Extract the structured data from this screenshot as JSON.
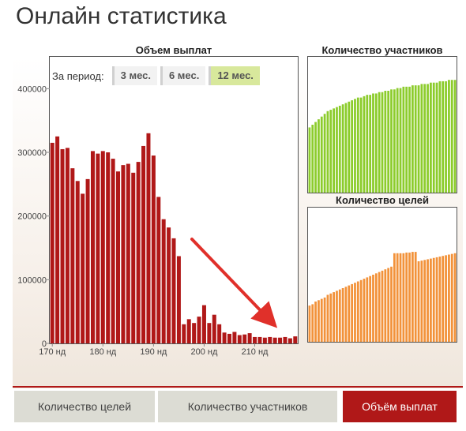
{
  "title": "Онлайн статистика",
  "period": {
    "label": "За период:",
    "options": [
      "3 мес.",
      "6 мес.",
      "12 мес."
    ],
    "active_index": 2
  },
  "tabs": [
    {
      "label": "Количество целей",
      "active": false
    },
    {
      "label": "Количество участников",
      "active": false
    },
    {
      "label": "Объём выплат",
      "active": true
    }
  ],
  "colors": {
    "payout_bar": "#b01818",
    "members_bar": "#8ccc2c",
    "goals_bar": "#f2923a",
    "accent": "#b01818",
    "arrow": "#e0302a"
  },
  "chart_data": [
    {
      "type": "bar",
      "title": "Объем выплат",
      "xlabel": "",
      "ylabel": "",
      "ylim": [
        0,
        450000
      ],
      "yticks": [
        0,
        100000,
        200000,
        300000,
        400000
      ],
      "ytick_labels": [
        "0",
        "100000",
        "200000",
        "300000",
        "400000"
      ],
      "xticks": [
        {
          "index": 0,
          "label": "170 нд"
        },
        {
          "index": 10,
          "label": "180 нд"
        },
        {
          "index": 20,
          "label": "190 нд"
        },
        {
          "index": 30,
          "label": "200 нд"
        },
        {
          "index": 40,
          "label": "210 нд"
        }
      ],
      "grid": false,
      "values": [
        315000,
        325000,
        305000,
        307000,
        275000,
        255000,
        235000,
        258000,
        302000,
        298000,
        302000,
        300000,
        290000,
        270000,
        280000,
        282000,
        268000,
        285000,
        310000,
        330000,
        295000,
        230000,
        195000,
        182000,
        165000,
        137000,
        30000,
        38000,
        32000,
        42000,
        60000,
        32000,
        45000,
        30000,
        17000,
        15000,
        18000,
        13000,
        14000,
        16000,
        10000,
        10000,
        9000,
        10000,
        9000,
        9000,
        10000,
        8000,
        11000
      ]
    },
    {
      "type": "bar",
      "title": "Количество участников",
      "ylim": [
        0,
        1
      ],
      "grid": false,
      "values": [
        0.48,
        0.5,
        0.52,
        0.54,
        0.56,
        0.58,
        0.6,
        0.61,
        0.62,
        0.63,
        0.64,
        0.65,
        0.66,
        0.67,
        0.68,
        0.69,
        0.7,
        0.7,
        0.71,
        0.72,
        0.72,
        0.73,
        0.73,
        0.74,
        0.74,
        0.75,
        0.75,
        0.76,
        0.76,
        0.77,
        0.77,
        0.78,
        0.78,
        0.78,
        0.79,
        0.79,
        0.79,
        0.8,
        0.8,
        0.8,
        0.81,
        0.81,
        0.81,
        0.82,
        0.82,
        0.82,
        0.83,
        0.83,
        0.83
      ]
    },
    {
      "type": "bar",
      "title": "Количество целей",
      "ylim": [
        0,
        1
      ],
      "grid": false,
      "values": [
        0.27,
        0.28,
        0.3,
        0.31,
        0.32,
        0.33,
        0.35,
        0.36,
        0.37,
        0.38,
        0.39,
        0.4,
        0.41,
        0.42,
        0.43,
        0.44,
        0.45,
        0.46,
        0.47,
        0.48,
        0.49,
        0.5,
        0.51,
        0.52,
        0.53,
        0.54,
        0.55,
        0.56,
        0.66,
        0.66,
        0.66,
        0.66,
        0.665,
        0.665,
        0.67,
        0.67,
        0.6,
        0.605,
        0.61,
        0.615,
        0.62,
        0.625,
        0.63,
        0.635,
        0.64,
        0.645,
        0.65,
        0.655,
        0.66
      ]
    }
  ]
}
